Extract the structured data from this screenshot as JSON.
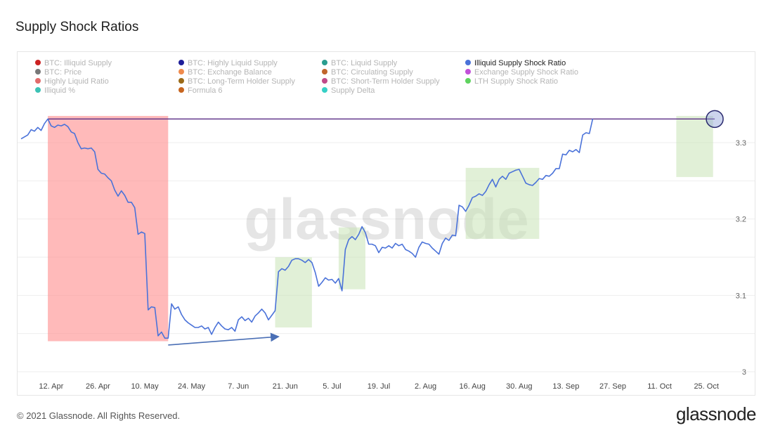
{
  "title": "Supply Shock Ratios",
  "footer": {
    "copyright": "© 2021 Glassnode. All Rights Reserved.",
    "logo": "glassnode"
  },
  "watermark": "glassnode",
  "legend": [
    {
      "label": "BTC: Illiquid Supply",
      "color": "#cc2222",
      "active": false
    },
    {
      "label": "BTC: Highly Liquid Supply",
      "color": "#1e1e99",
      "active": false
    },
    {
      "label": "BTC: Liquid Supply",
      "color": "#2a9d8f",
      "active": false
    },
    {
      "label": "Illiquid Supply Shock Ratio",
      "color": "#4a72d9",
      "active": true
    },
    {
      "label": "BTC: Price",
      "color": "#777777",
      "active": false
    },
    {
      "label": "BTC: Exchange Balance",
      "color": "#f08b4d",
      "active": false
    },
    {
      "label": "BTC: Circulating Supply",
      "color": "#c0652c",
      "active": false
    },
    {
      "label": "Exchange Supply Shock Ratio",
      "color": "#c150d8",
      "active": false
    },
    {
      "label": "Highly Liquid Ratio",
      "color": "#e26b6b",
      "active": false
    },
    {
      "label": "BTC: Long-Term Holder Supply",
      "color": "#9a6a18",
      "active": false
    },
    {
      "label": "BTC: Short-Term Holder Supply",
      "color": "#c04a8a",
      "active": false
    },
    {
      "label": "LTH Supply Shock Ratio",
      "color": "#5fd35f",
      "active": false
    },
    {
      "label": "Illiquid %",
      "color": "#3cc2b5",
      "active": false
    },
    {
      "label": "Formula 6",
      "color": "#c7651f",
      "active": false
    },
    {
      "label": "Supply Delta",
      "color": "#36d0c6",
      "active": false
    }
  ],
  "chart_data": {
    "type": "line",
    "title": "Supply Shock Ratios",
    "series_color": "#4a72d9",
    "x_ticks": [
      "12. Apr",
      "26. Apr",
      "10. May",
      "24. May",
      "7. Jun",
      "21. Jun",
      "5. Jul",
      "19. Jul",
      "2. Aug",
      "16. Aug",
      "30. Aug",
      "13. Sep",
      "27. Sep",
      "11. Oct",
      "25. Oct"
    ],
    "y_ticks": [
      3,
      3.1,
      3.2,
      3.3
    ],
    "ylim": [
      3.0,
      3.33
    ],
    "x_range_days": [
      -9,
      205
    ],
    "series": [
      {
        "values": [
          [
            -9,
            3.305
          ],
          [
            -7,
            3.31
          ],
          [
            -6,
            3.317
          ],
          [
            -5,
            3.315
          ],
          [
            -4,
            3.32
          ],
          [
            -3,
            3.316
          ],
          [
            -2,
            3.325
          ],
          [
            -1,
            3.331
          ],
          [
            0,
            3.322
          ],
          [
            1,
            3.32
          ],
          [
            2,
            3.323
          ],
          [
            3,
            3.322
          ],
          [
            4,
            3.324
          ],
          [
            5,
            3.321
          ],
          [
            6,
            3.314
          ],
          [
            7,
            3.312
          ],
          [
            8,
            3.3
          ],
          [
            9,
            3.292
          ],
          [
            10,
            3.293
          ],
          [
            11,
            3.292
          ],
          [
            12,
            3.293
          ],
          [
            13,
            3.288
          ],
          [
            14,
            3.265
          ],
          [
            15,
            3.26
          ],
          [
            16,
            3.259
          ],
          [
            17,
            3.254
          ],
          [
            18,
            3.25
          ],
          [
            19,
            3.238
          ],
          [
            20,
            3.23
          ],
          [
            21,
            3.237
          ],
          [
            22,
            3.231
          ],
          [
            23,
            3.222
          ],
          [
            24,
            3.222
          ],
          [
            25,
            3.215
          ],
          [
            26,
            3.18
          ],
          [
            27,
            3.183
          ],
          [
            28,
            3.181
          ],
          [
            29,
            3.081
          ],
          [
            30,
            3.085
          ],
          [
            31,
            3.084
          ],
          [
            32,
            3.047
          ],
          [
            33,
            3.052
          ],
          [
            34,
            3.044
          ],
          [
            35,
            3.044
          ],
          [
            36,
            3.089
          ],
          [
            37,
            3.082
          ],
          [
            38,
            3.085
          ],
          [
            39,
            3.075
          ],
          [
            40,
            3.068
          ],
          [
            41,
            3.064
          ],
          [
            42,
            3.061
          ],
          [
            43,
            3.058
          ],
          [
            44,
            3.058
          ],
          [
            45,
            3.06
          ],
          [
            46,
            3.056
          ],
          [
            47,
            3.058
          ],
          [
            48,
            3.049
          ],
          [
            49,
            3.058
          ],
          [
            50,
            3.065
          ],
          [
            51,
            3.06
          ],
          [
            52,
            3.056
          ],
          [
            53,
            3.055
          ],
          [
            54,
            3.058
          ],
          [
            55,
            3.053
          ],
          [
            56,
            3.068
          ],
          [
            57,
            3.072
          ],
          [
            58,
            3.067
          ],
          [
            59,
            3.07
          ],
          [
            60,
            3.065
          ],
          [
            61,
            3.073
          ],
          [
            62,
            3.077
          ],
          [
            63,
            3.082
          ],
          [
            64,
            3.077
          ],
          [
            65,
            3.068
          ],
          [
            66,
            3.074
          ],
          [
            67,
            3.08
          ],
          [
            68,
            3.131
          ],
          [
            69,
            3.135
          ],
          [
            70,
            3.133
          ],
          [
            71,
            3.138
          ],
          [
            72,
            3.146
          ],
          [
            73,
            3.148
          ],
          [
            74,
            3.148
          ],
          [
            75,
            3.146
          ],
          [
            76,
            3.143
          ],
          [
            77,
            3.147
          ],
          [
            78,
            3.143
          ],
          [
            79,
            3.13
          ],
          [
            80,
            3.112
          ],
          [
            81,
            3.117
          ],
          [
            82,
            3.123
          ],
          [
            83,
            3.12
          ],
          [
            84,
            3.121
          ],
          [
            85,
            3.116
          ],
          [
            86,
            3.122
          ],
          [
            87,
            3.106
          ],
          [
            88,
            3.16
          ],
          [
            89,
            3.173
          ],
          [
            90,
            3.177
          ],
          [
            91,
            3.173
          ],
          [
            92,
            3.18
          ],
          [
            93,
            3.19
          ],
          [
            94,
            3.182
          ],
          [
            95,
            3.167
          ],
          [
            96,
            3.167
          ],
          [
            97,
            3.165
          ],
          [
            98,
            3.156
          ],
          [
            99,
            3.163
          ],
          [
            100,
            3.162
          ],
          [
            101,
            3.165
          ],
          [
            102,
            3.162
          ],
          [
            103,
            3.168
          ],
          [
            104,
            3.165
          ],
          [
            105,
            3.167
          ],
          [
            106,
            3.16
          ],
          [
            107,
            3.158
          ],
          [
            108,
            3.155
          ],
          [
            109,
            3.15
          ],
          [
            110,
            3.163
          ],
          [
            111,
            3.17
          ],
          [
            112,
            3.168
          ],
          [
            113,
            3.167
          ],
          [
            114,
            3.162
          ],
          [
            115,
            3.158
          ],
          [
            116,
            3.154
          ],
          [
            117,
            3.168
          ],
          [
            118,
            3.175
          ],
          [
            119,
            3.172
          ],
          [
            120,
            3.179
          ],
          [
            121,
            3.178
          ],
          [
            122,
            3.218
          ],
          [
            123,
            3.216
          ],
          [
            124,
            3.21
          ],
          [
            125,
            3.218
          ],
          [
            126,
            3.228
          ],
          [
            127,
            3.23
          ],
          [
            128,
            3.233
          ],
          [
            129,
            3.231
          ],
          [
            130,
            3.236
          ],
          [
            131,
            3.245
          ],
          [
            132,
            3.252
          ],
          [
            133,
            3.242
          ],
          [
            134,
            3.252
          ],
          [
            135,
            3.256
          ],
          [
            136,
            3.252
          ],
          [
            137,
            3.26
          ],
          [
            138,
            3.262
          ],
          [
            139,
            3.264
          ],
          [
            140,
            3.265
          ],
          [
            141,
            3.256
          ],
          [
            142,
            3.247
          ],
          [
            143,
            3.245
          ],
          [
            144,
            3.244
          ],
          [
            145,
            3.248
          ],
          [
            146,
            3.253
          ],
          [
            147,
            3.252
          ],
          [
            148,
            3.257
          ],
          [
            149,
            3.256
          ],
          [
            150,
            3.26
          ],
          [
            151,
            3.266
          ],
          [
            152,
            3.266
          ],
          [
            153,
            3.285
          ],
          [
            154,
            3.284
          ],
          [
            155,
            3.29
          ],
          [
            156,
            3.288
          ],
          [
            157,
            3.291
          ],
          [
            158,
            3.287
          ],
          [
            159,
            3.31
          ],
          [
            160,
            3.313
          ],
          [
            161,
            3.312
          ],
          [
            162,
            3.331
          ]
        ]
      }
    ],
    "annotations": {
      "red_box": {
        "x0": -1,
        "x1": 35,
        "y0": 3.04,
        "y1": 3.335,
        "color": "#ff8f8f"
      },
      "green_boxes": [
        {
          "x0": 67,
          "x1": 78,
          "y0": 3.058,
          "y1": 3.15
        },
        {
          "x0": 86,
          "x1": 94,
          "y0": 3.108,
          "y1": 3.189
        },
        {
          "x0": 124,
          "x1": 146,
          "y0": 3.174,
          "y1": 3.267
        },
        {
          "x0": 187,
          "x1": 198,
          "y0": 3.255,
          "y1": 3.335
        }
      ],
      "hline": {
        "y": 3.331,
        "color": "#5a2d85"
      },
      "arrow": {
        "x0": 35,
        "y0": 3.035,
        "x1": 68,
        "y1": 3.046,
        "color": "#4a6fb5"
      },
      "circle": {
        "x": 198.5,
        "y": 3.331,
        "color": "#2a2a6e"
      }
    }
  }
}
